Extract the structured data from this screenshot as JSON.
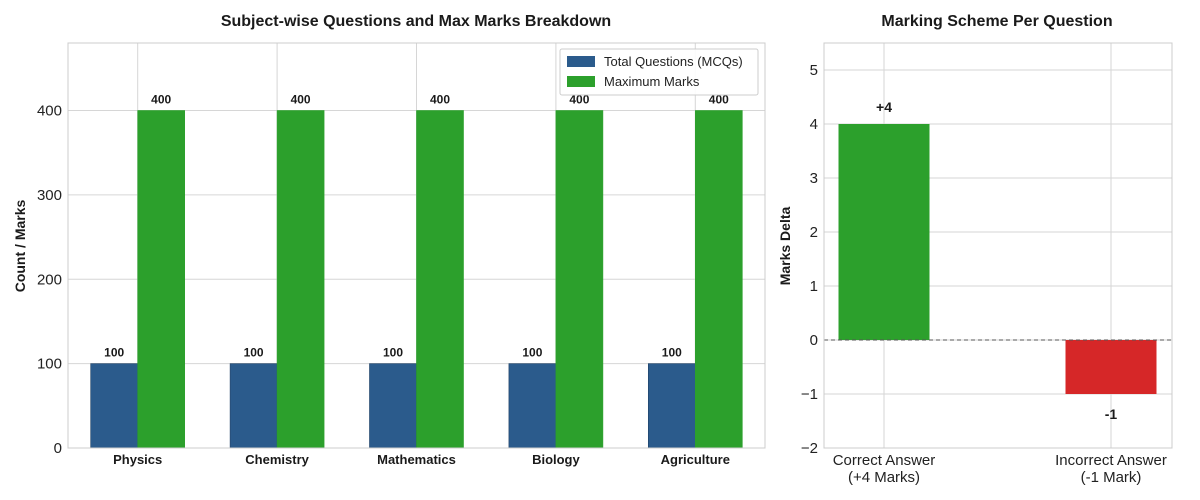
{
  "chart_data": [
    {
      "type": "bar",
      "title": "Subject-wise Questions and Max Marks Breakdown",
      "xlabel": "",
      "ylabel": "Count / Marks",
      "ylim": [
        0,
        480
      ],
      "yticks": [
        0,
        100,
        200,
        300,
        400
      ],
      "categories": [
        "Physics",
        "Chemistry",
        "Mathematics",
        "Biology",
        "Agriculture"
      ],
      "series": [
        {
          "name": "Total Questions (MCQs)",
          "values": [
            100,
            100,
            100,
            100,
            100
          ],
          "color": "#2b5b8c"
        },
        {
          "name": "Maximum Marks",
          "values": [
            400,
            400,
            400,
            400,
            400
          ],
          "color": "#2ca02c"
        }
      ],
      "grid": true,
      "legend": "top-right"
    },
    {
      "type": "bar",
      "title": "Marking Scheme Per Question",
      "xlabel": "",
      "ylabel": "Marks Delta",
      "ylim": [
        -2,
        5.5
      ],
      "yticks": [
        -2,
        -1,
        0,
        1,
        2,
        3,
        4,
        5
      ],
      "categories": [
        [
          "Correct Answer",
          "(+4 Marks)"
        ],
        [
          "Incorrect Answer",
          "(-1 Mark)"
        ]
      ],
      "values": [
        4,
        -1
      ],
      "labels": [
        "+4",
        "-1"
      ],
      "colors": [
        "#2ca02c",
        "#d62728"
      ],
      "grid": true,
      "zero_line": "dashed"
    }
  ]
}
